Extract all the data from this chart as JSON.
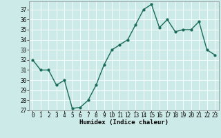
{
  "x": [
    0,
    1,
    2,
    3,
    4,
    5,
    6,
    7,
    8,
    9,
    10,
    11,
    12,
    13,
    14,
    15,
    16,
    17,
    18,
    19,
    20,
    21,
    22,
    23
  ],
  "y": [
    32,
    31,
    31,
    29.5,
    30,
    27.2,
    27.3,
    28,
    29.5,
    31.5,
    33,
    33.5,
    34,
    35.5,
    37,
    37.5,
    35.2,
    36,
    34.8,
    35,
    35,
    35.8,
    33,
    32.5
  ],
  "line_color": "#1a6b5a",
  "marker_color": "#1a6b5a",
  "bg_color": "#cceae7",
  "grid_color": "#ffffff",
  "xlabel": "Humidex (Indice chaleur)",
  "ylim": [
    27,
    37.8
  ],
  "xlim": [
    -0.5,
    23.5
  ],
  "yticks": [
    27,
    28,
    29,
    30,
    31,
    32,
    33,
    34,
    35,
    36,
    37
  ],
  "xticks": [
    0,
    1,
    2,
    3,
    4,
    5,
    6,
    7,
    8,
    9,
    10,
    11,
    12,
    13,
    14,
    15,
    16,
    17,
    18,
    19,
    20,
    21,
    22,
    23
  ],
  "xlabel_fontsize": 6.5,
  "tick_fontsize": 5.5,
  "linewidth": 1.0,
  "markersize": 2.0
}
